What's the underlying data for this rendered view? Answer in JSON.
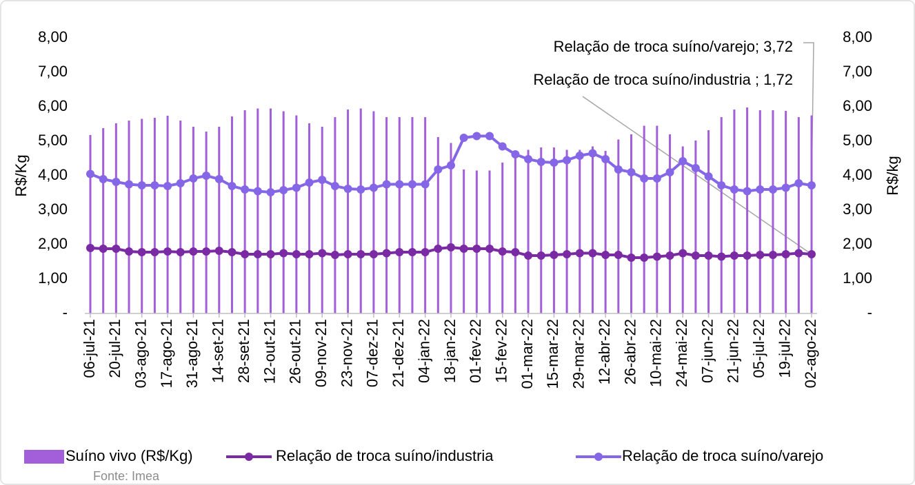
{
  "chart_data": {
    "type": "bar_line",
    "y_label": "R$/Kg",
    "y2_label": "R$/kg",
    "source": "Fonte: Imea",
    "annotations": [
      "Relação de troca suíno/varejo; 3,72",
      "Relação de troca suíno/industria ; 1,72"
    ],
    "categories": [
      "06-jul-21",
      null,
      "20-jul-21",
      null,
      "03-ago-21",
      null,
      "17-ago-21",
      null,
      "31-ago-21",
      null,
      "14-set-21",
      null,
      "28-set-21",
      null,
      "12-out-21",
      null,
      "26-out-21",
      null,
      "09-nov-21",
      null,
      "23-nov-21",
      null,
      "07-dez-21",
      null,
      "21-dez-21",
      null,
      "04-jan-22",
      null,
      "18-jan-22",
      null,
      "01-fev-22",
      null,
      "15-fev-22",
      null,
      "01-mar-22",
      null,
      "15-mar-22",
      null,
      "29-mar-22",
      null,
      "12-abr-22",
      null,
      "26-abr-22",
      null,
      "10-mai-22",
      null,
      "24-mai-22",
      null,
      "07-jun-22",
      null,
      "21-jun-22",
      null,
      "05-jul-22",
      null,
      "19-jul-22",
      null,
      "02-ago-22"
    ],
    "series": [
      {
        "name": "Suíno vivo (R$/Kg)",
        "kind": "bar",
        "color": "#a35fd9",
        "values": [
          5.18,
          5.38,
          5.52,
          5.6,
          5.65,
          5.68,
          5.74,
          5.6,
          5.42,
          5.28,
          5.42,
          5.72,
          5.9,
          5.95,
          5.95,
          5.87,
          5.75,
          5.52,
          5.42,
          5.7,
          5.92,
          5.95,
          5.87,
          5.7,
          5.7,
          5.7,
          5.7,
          5.12,
          4.95,
          4.18,
          4.15,
          4.15,
          4.38,
          4.62,
          4.75,
          4.82,
          4.82,
          4.75,
          4.75,
          4.85,
          4.72,
          5.05,
          5.2,
          5.45,
          5.45,
          5.2,
          4.85,
          5.02,
          5.32,
          5.7,
          5.92,
          5.98,
          5.9,
          5.9,
          5.88,
          5.7,
          5.75
        ]
      },
      {
        "name": "Relação de troca suíno/industria",
        "kind": "line",
        "axis": "y2",
        "color": "#7a2aa3",
        "values": [
          1.9,
          1.88,
          1.88,
          1.8,
          1.78,
          1.78,
          1.8,
          1.78,
          1.8,
          1.8,
          1.82,
          1.78,
          1.72,
          1.72,
          1.72,
          1.75,
          1.72,
          1.72,
          1.75,
          1.7,
          1.72,
          1.72,
          1.72,
          1.75,
          1.78,
          1.78,
          1.78,
          1.88,
          1.92,
          1.88,
          1.88,
          1.88,
          1.8,
          1.78,
          1.68,
          1.68,
          1.7,
          1.72,
          1.75,
          1.75,
          1.7,
          1.7,
          1.62,
          1.62,
          1.65,
          1.68,
          1.75,
          1.68,
          1.68,
          1.65,
          1.68,
          1.68,
          1.7,
          1.7,
          1.72,
          1.75,
          1.72
        ]
      },
      {
        "name": "Relação de troca suíno/varejo",
        "kind": "line",
        "axis": "y2",
        "color": "#8466e6",
        "values": [
          4.05,
          3.9,
          3.82,
          3.75,
          3.72,
          3.72,
          3.7,
          3.78,
          3.92,
          4.0,
          3.9,
          3.7,
          3.6,
          3.55,
          3.52,
          3.58,
          3.65,
          3.8,
          3.88,
          3.7,
          3.62,
          3.6,
          3.65,
          3.75,
          3.75,
          3.75,
          3.75,
          4.18,
          4.3,
          5.1,
          5.15,
          5.15,
          4.85,
          4.62,
          4.48,
          4.4,
          4.38,
          4.45,
          4.58,
          4.65,
          4.48,
          4.18,
          4.1,
          3.92,
          3.92,
          4.1,
          4.42,
          4.22,
          3.98,
          3.72,
          3.6,
          3.55,
          3.6,
          3.6,
          3.65,
          3.78,
          3.72
        ]
      }
    ],
    "ylim": [
      0,
      8
    ],
    "yticks": [
      {
        "value": 0,
        "label": "-"
      },
      {
        "value": 1,
        "label": "1,00"
      },
      {
        "value": 2,
        "label": "2,00"
      },
      {
        "value": 3,
        "label": "3,00"
      },
      {
        "value": 4,
        "label": "4,00"
      },
      {
        "value": 5,
        "label": "5,00"
      },
      {
        "value": 6,
        "label": "6,00"
      },
      {
        "value": 7,
        "label": "7,00"
      },
      {
        "value": 8,
        "label": "8,00"
      }
    ],
    "y2lim": [
      0,
      8
    ],
    "y2ticks": [
      {
        "value": 0,
        "label": "-"
      },
      {
        "value": 1,
        "label": "1,00"
      },
      {
        "value": 2,
        "label": "2,00"
      },
      {
        "value": 3,
        "label": "3,00"
      },
      {
        "value": 4,
        "label": "4,00"
      },
      {
        "value": 5,
        "label": "5,00"
      },
      {
        "value": 6,
        "label": "6,00"
      },
      {
        "value": 7,
        "label": "7,00"
      },
      {
        "value": 8,
        "label": "8,00"
      }
    ],
    "grid": false,
    "legend": "bottom"
  }
}
